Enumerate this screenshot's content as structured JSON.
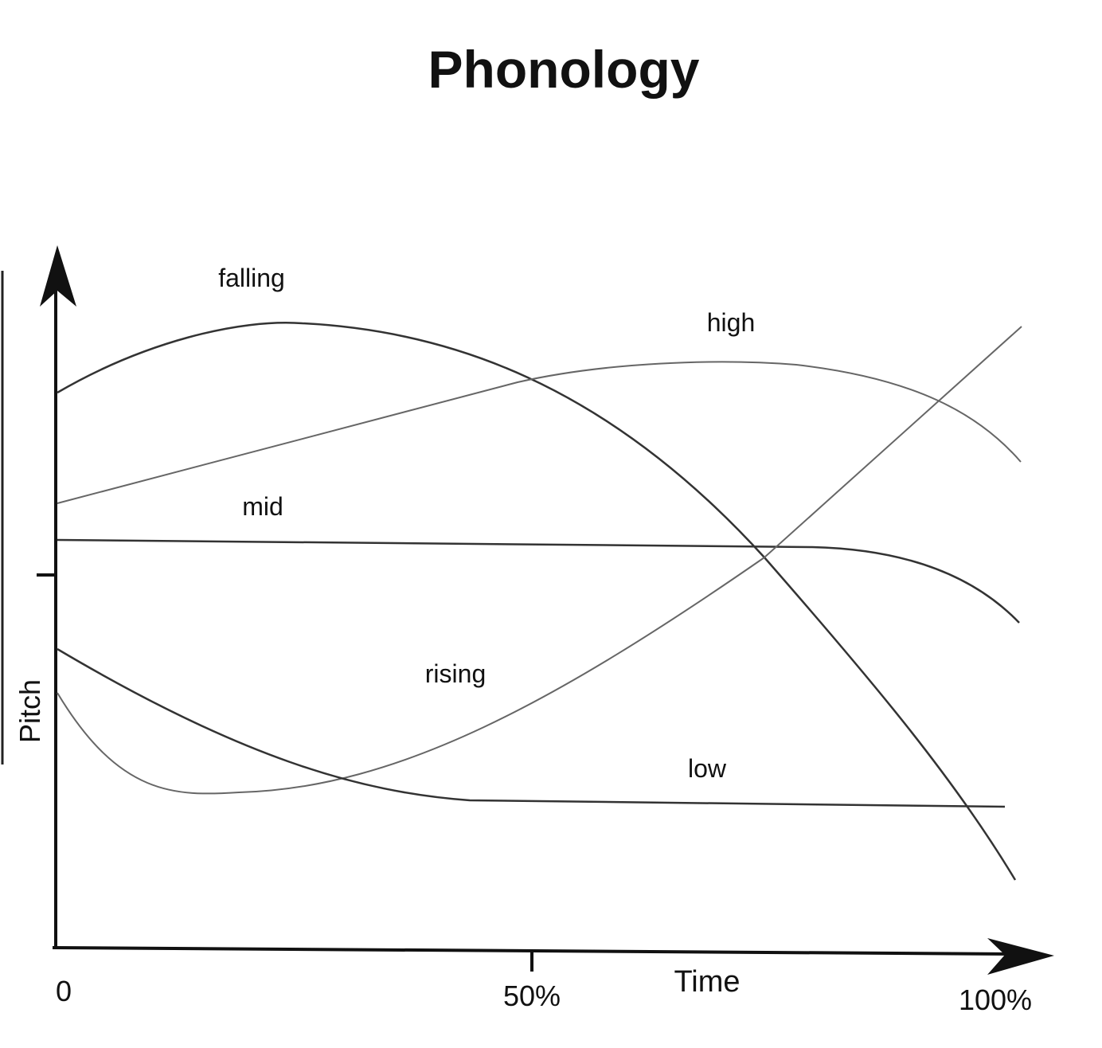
{
  "header": {
    "title": "Phonology"
  },
  "axes": {
    "y_label": "Pitch",
    "x_label": "Time",
    "x_ticks": [
      "0",
      "50%",
      "100%"
    ]
  },
  "curves": [
    {
      "label": "falling"
    },
    {
      "label": "high"
    },
    {
      "label": "mid"
    },
    {
      "label": "rising"
    },
    {
      "label": "low"
    }
  ]
}
